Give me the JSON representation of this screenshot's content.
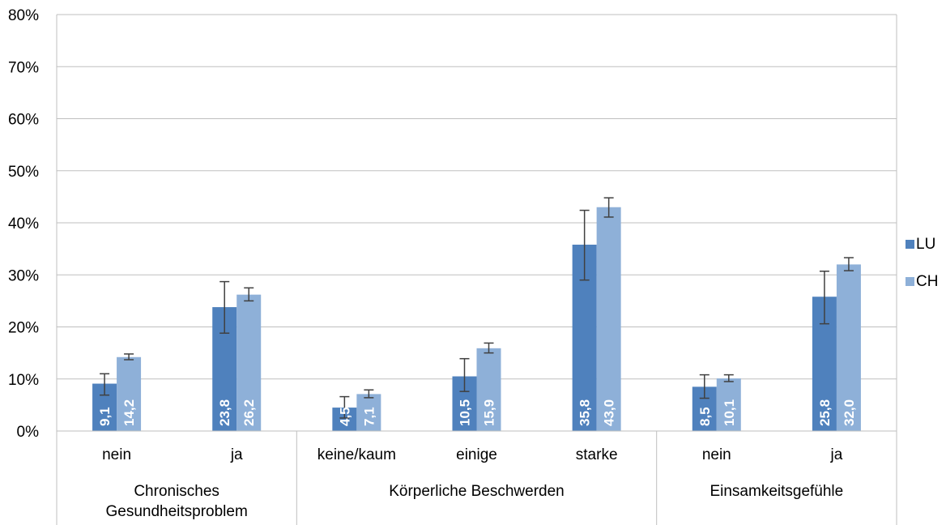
{
  "chart_data": {
    "type": "bar",
    "ylim": [
      0,
      80
    ],
    "y_ticks": [
      "0%",
      "10%",
      "20%",
      "30%",
      "40%",
      "50%",
      "60%",
      "70%",
      "80%"
    ],
    "y_tick_values": [
      0,
      10,
      20,
      30,
      40,
      50,
      60,
      70,
      80
    ],
    "grid": true,
    "legend_position": "right",
    "categories": [
      "nein",
      "ja",
      "keine/kaum",
      "einige",
      "starke",
      "nein",
      "ja"
    ],
    "groups": [
      {
        "label": "Chronisches Gesundheitsproblem",
        "lines": [
          "Chronisches",
          "Gesundheitsproblem"
        ],
        "start": 0,
        "count": 2
      },
      {
        "label": "Körperliche Beschwerden",
        "lines": [
          "Körperliche Beschwerden"
        ],
        "start": 2,
        "count": 3
      },
      {
        "label": "Einsamkeitsgefühle",
        "lines": [
          "Einsamkeitsgefühle"
        ],
        "start": 5,
        "count": 2
      }
    ],
    "series": [
      {
        "name": "LU",
        "color": "#4f81bd",
        "values": [
          9.1,
          23.8,
          4.5,
          10.5,
          35.8,
          8.5,
          25.8
        ],
        "labels": [
          "9,1",
          "23,8",
          "4,5",
          "10,5",
          "35,8",
          "8,5",
          "25,8"
        ],
        "err_low": [
          6.9,
          18.8,
          2.5,
          7.6,
          29.0,
          6.3,
          20.6
        ],
        "err_high": [
          11.0,
          28.7,
          6.6,
          13.9,
          42.4,
          10.8,
          30.7
        ]
      },
      {
        "name": "CH",
        "color": "#8eb0d8",
        "values": [
          14.2,
          26.2,
          7.1,
          15.9,
          43.0,
          10.1,
          32.0
        ],
        "labels": [
          "14,2",
          "26,2",
          "7,1",
          "15,9",
          "43,0",
          "10,1",
          "32,0"
        ],
        "err_low": [
          13.7,
          25.0,
          6.4,
          15.0,
          41.1,
          9.5,
          30.8
        ],
        "err_high": [
          14.8,
          27.5,
          7.9,
          16.9,
          44.8,
          10.8,
          33.3
        ]
      }
    ]
  }
}
